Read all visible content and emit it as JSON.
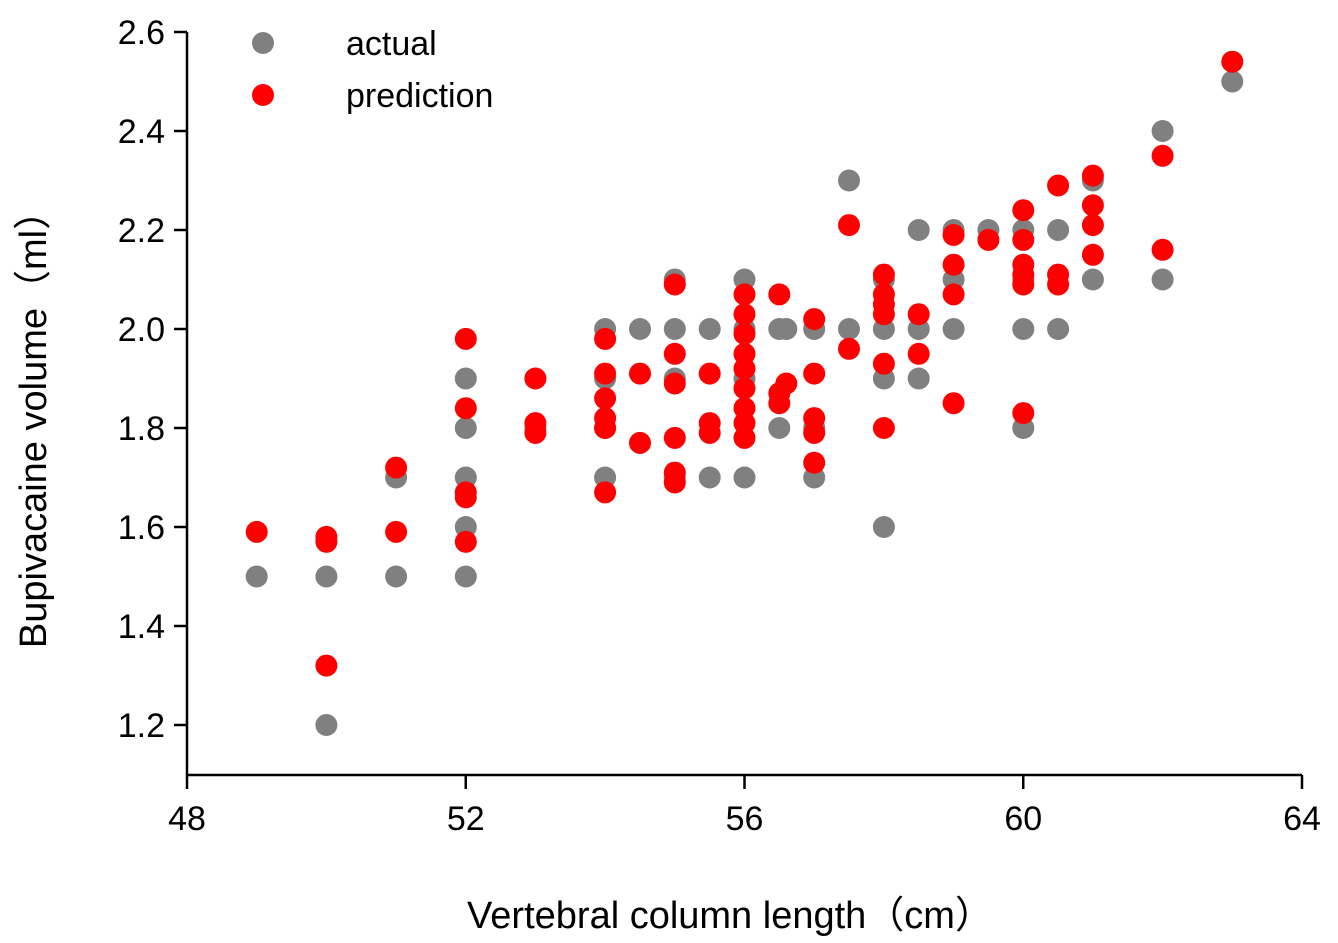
{
  "chart_data": {
    "type": "scatter",
    "title": "",
    "xlabel": "Vertebral column length（cm）",
    "ylabel": "Bupivacaine volume（ml）",
    "xlim": [
      48,
      64
    ],
    "ylim": [
      1.1,
      2.6
    ],
    "x_ticks": [
      "48",
      "52",
      "56",
      "60",
      "64"
    ],
    "y_ticks": [
      "1.2",
      "1.4",
      "1.6",
      "1.8",
      "2.0",
      "2.2",
      "2.4",
      "2.6"
    ],
    "grid": false,
    "legend_position": "top-left",
    "series": [
      {
        "name": "actual",
        "color": "#808080",
        "points": [
          [
            49,
            1.5
          ],
          [
            50,
            1.5
          ],
          [
            50,
            1.2
          ],
          [
            51,
            1.7
          ],
          [
            51,
            1.5
          ],
          [
            52,
            1.9
          ],
          [
            52,
            1.8
          ],
          [
            52,
            1.7
          ],
          [
            52,
            1.6
          ],
          [
            52,
            1.5
          ],
          [
            53,
            1.8
          ],
          [
            54,
            2.0
          ],
          [
            54,
            1.9
          ],
          [
            54,
            1.8
          ],
          [
            54,
            1.7
          ],
          [
            54.5,
            2.0
          ],
          [
            55,
            2.1
          ],
          [
            55,
            2.0
          ],
          [
            55,
            1.9
          ],
          [
            55,
            1.7
          ],
          [
            55.5,
            2.0
          ],
          [
            55.5,
            1.7
          ],
          [
            56,
            2.1
          ],
          [
            56,
            2.0
          ],
          [
            56,
            1.9
          ],
          [
            56,
            1.7
          ],
          [
            56.5,
            2.0
          ],
          [
            56.5,
            1.8
          ],
          [
            56.6,
            2.0
          ],
          [
            57,
            2.0
          ],
          [
            57,
            1.8
          ],
          [
            57,
            1.7
          ],
          [
            57.5,
            2.3
          ],
          [
            57.5,
            2.0
          ],
          [
            58,
            2.1
          ],
          [
            58,
            2.0
          ],
          [
            58,
            1.9
          ],
          [
            58,
            1.6
          ],
          [
            58.5,
            2.2
          ],
          [
            58.5,
            2.0
          ],
          [
            58.5,
            1.9
          ],
          [
            59,
            2.2
          ],
          [
            59,
            2.1
          ],
          [
            59,
            2.0
          ],
          [
            59.5,
            2.2
          ],
          [
            60,
            2.2
          ],
          [
            60,
            2.1
          ],
          [
            60,
            2.0
          ],
          [
            60,
            1.8
          ],
          [
            60.5,
            2.2
          ],
          [
            60.5,
            2.0
          ],
          [
            61,
            2.3
          ],
          [
            61,
            2.1
          ],
          [
            62,
            2.4
          ],
          [
            62,
            2.1
          ],
          [
            63,
            2.5
          ]
        ]
      },
      {
        "name": "prediction",
        "color": "#ff0000",
        "points": [
          [
            49,
            1.59
          ],
          [
            50,
            1.58
          ],
          [
            50,
            1.57
          ],
          [
            50,
            1.32
          ],
          [
            51,
            1.72
          ],
          [
            51,
            1.59
          ],
          [
            52,
            1.98
          ],
          [
            52,
            1.84
          ],
          [
            52,
            1.67
          ],
          [
            52,
            1.66
          ],
          [
            52,
            1.57
          ],
          [
            53,
            1.9
          ],
          [
            53,
            1.81
          ],
          [
            53,
            1.79
          ],
          [
            54,
            1.98
          ],
          [
            54,
            1.91
          ],
          [
            54,
            1.86
          ],
          [
            54,
            1.82
          ],
          [
            54,
            1.8
          ],
          [
            54,
            1.67
          ],
          [
            54.5,
            1.91
          ],
          [
            54.5,
            1.77
          ],
          [
            55,
            2.09
          ],
          [
            55,
            1.95
          ],
          [
            55,
            1.89
          ],
          [
            55,
            1.78
          ],
          [
            55,
            1.71
          ],
          [
            55,
            1.69
          ],
          [
            55.5,
            1.91
          ],
          [
            55.5,
            1.81
          ],
          [
            55.5,
            1.79
          ],
          [
            56,
            2.07
          ],
          [
            56,
            2.03
          ],
          [
            56,
            1.99
          ],
          [
            56,
            1.95
          ],
          [
            56,
            1.92
          ],
          [
            56,
            1.88
          ],
          [
            56,
            1.84
          ],
          [
            56,
            1.81
          ],
          [
            56,
            1.78
          ],
          [
            56.5,
            2.07
          ],
          [
            56.5,
            1.87
          ],
          [
            56.5,
            1.85
          ],
          [
            56.6,
            1.89
          ],
          [
            57,
            2.02
          ],
          [
            57,
            1.91
          ],
          [
            57,
            1.82
          ],
          [
            57,
            1.79
          ],
          [
            57,
            1.73
          ],
          [
            57.5,
            2.21
          ],
          [
            57.5,
            1.96
          ],
          [
            58,
            2.11
          ],
          [
            58,
            2.07
          ],
          [
            58,
            2.05
          ],
          [
            58,
            2.03
          ],
          [
            58,
            1.93
          ],
          [
            58,
            1.8
          ],
          [
            58.5,
            2.03
          ],
          [
            58.5,
            1.95
          ],
          [
            59,
            2.19
          ],
          [
            59,
            2.13
          ],
          [
            59,
            2.07
          ],
          [
            59,
            1.85
          ],
          [
            59.5,
            2.18
          ],
          [
            60,
            2.24
          ],
          [
            60,
            2.18
          ],
          [
            60,
            2.13
          ],
          [
            60,
            2.11
          ],
          [
            60,
            2.09
          ],
          [
            60,
            1.83
          ],
          [
            60.5,
            2.29
          ],
          [
            60.5,
            2.11
          ],
          [
            60.5,
            2.09
          ],
          [
            61,
            2.31
          ],
          [
            61,
            2.25
          ],
          [
            61,
            2.21
          ],
          [
            61,
            2.15
          ],
          [
            62,
            2.35
          ],
          [
            62,
            2.16
          ],
          [
            63,
            2.54
          ]
        ]
      }
    ]
  }
}
